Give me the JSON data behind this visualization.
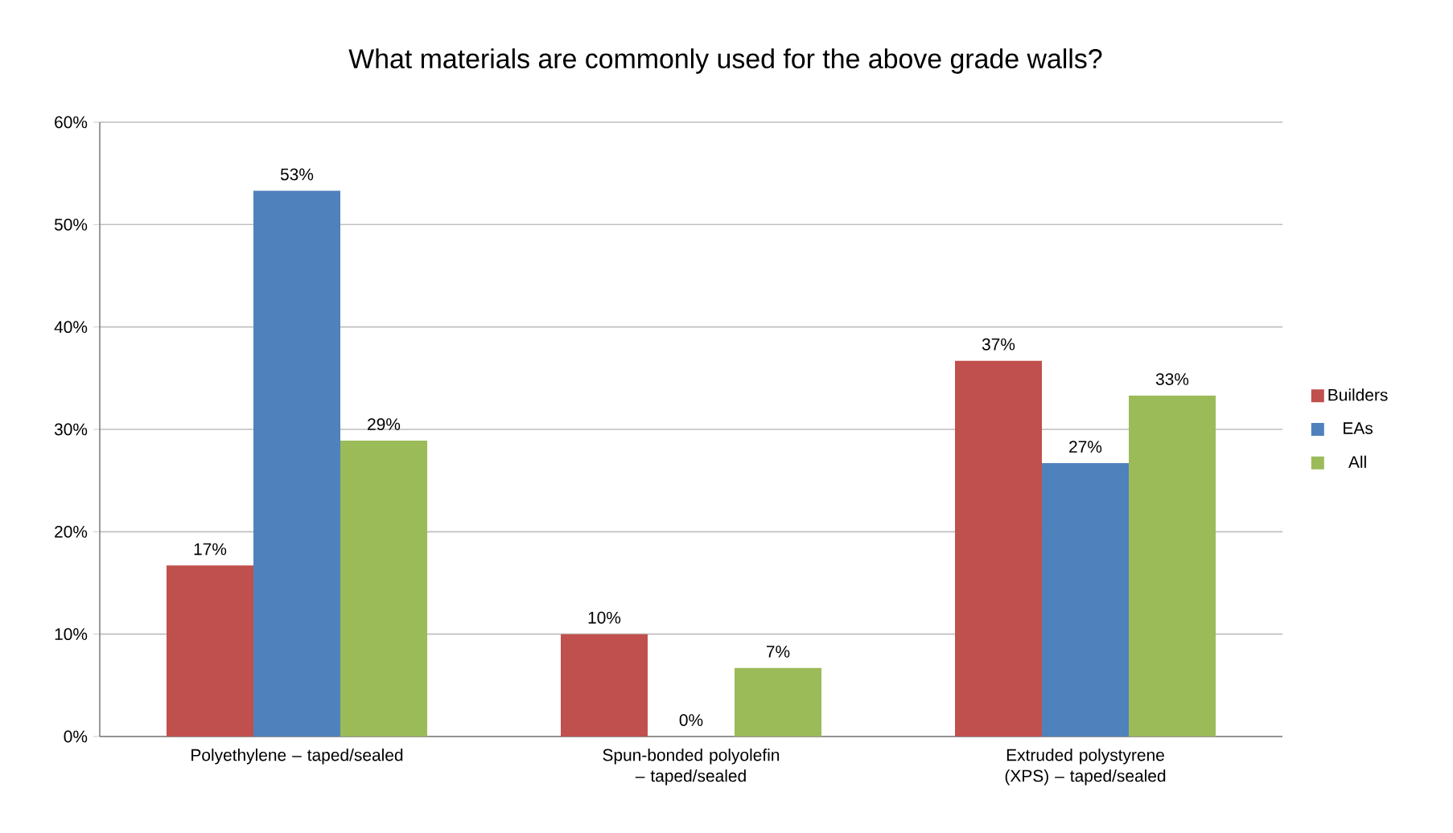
{
  "chart_data": {
    "type": "bar",
    "title": "What materials are commonly used for the above grade walls?",
    "categories": [
      "Polyethylene – taped/sealed",
      "Spun-bonded polyolefin – taped/sealed",
      "Extruded polystyrene (XPS) – taped/sealed"
    ],
    "series": [
      {
        "name": "Builders",
        "color": "#c0504d",
        "values": [
          16.7,
          10,
          36.7
        ],
        "value_labels": [
          "17%",
          "10%",
          "37%"
        ]
      },
      {
        "name": "EAs",
        "color": "#4f81bd",
        "values": [
          53.3,
          0,
          26.7
        ],
        "value_labels": [
          "53%",
          "0%",
          "27%"
        ]
      },
      {
        "name": "All",
        "color": "#9bbb59",
        "values": [
          28.9,
          6.7,
          33.3
        ],
        "value_labels": [
          "29%",
          "7%",
          "33%"
        ]
      }
    ],
    "ylim": [
      0,
      60
    ],
    "yticks": [
      {
        "value": 0,
        "label": "0%"
      },
      {
        "value": 10,
        "label": "10%"
      },
      {
        "value": 20,
        "label": "20%"
      },
      {
        "value": 30,
        "label": "30%"
      },
      {
        "value": 40,
        "label": "40%"
      },
      {
        "value": 50,
        "label": "50%"
      },
      {
        "value": 60,
        "label": "60%"
      }
    ],
    "grid": "y",
    "legend": "right"
  }
}
